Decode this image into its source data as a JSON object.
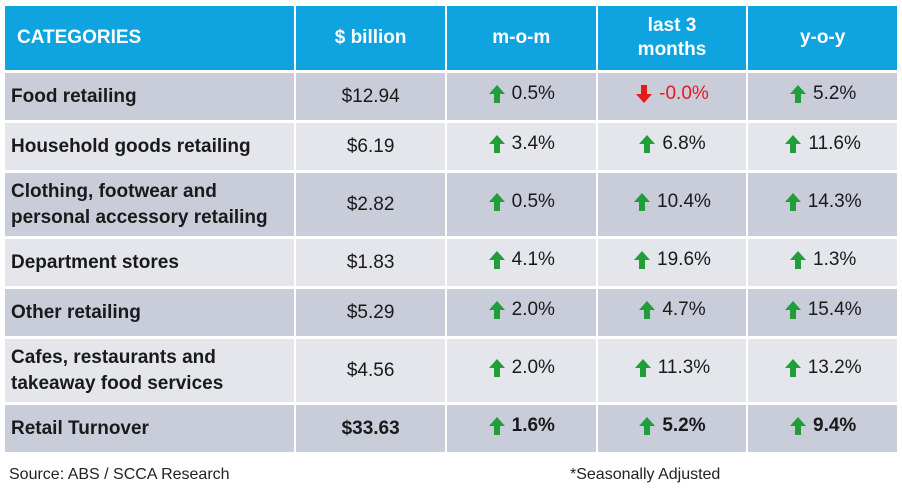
{
  "columns": [
    "CATEGORIES",
    "$ billion",
    "m-o-m",
    "last 3\nmonths",
    "y-o-y"
  ],
  "columns_display": {
    "categories": "CATEGORIES",
    "billion": "$ billion",
    "mom": "m-o-m",
    "last3_line1": "last 3",
    "last3_line2": "months",
    "yoy": "y-o-y"
  },
  "rows": [
    {
      "category_lines": [
        "Food retailing"
      ],
      "billion": "$12.94",
      "mom": {
        "value": "0.5%",
        "dir": "up"
      },
      "last3": {
        "value": "-0.0%",
        "dir": "down"
      },
      "yoy": {
        "value": "5.2%",
        "dir": "up"
      }
    },
    {
      "category_lines": [
        "Household goods retailing"
      ],
      "billion": "$6.19",
      "mom": {
        "value": "3.4%",
        "dir": "up"
      },
      "last3": {
        "value": "6.8%",
        "dir": "up"
      },
      "yoy": {
        "value": "11.6%",
        "dir": "up"
      }
    },
    {
      "category_lines": [
        "Clothing, footwear and",
        "personal accessory retailing"
      ],
      "billion": "$2.82",
      "mom": {
        "value": "0.5%",
        "dir": "up"
      },
      "last3": {
        "value": "10.4%",
        "dir": "up"
      },
      "yoy": {
        "value": "14.3%",
        "dir": "up"
      }
    },
    {
      "category_lines": [
        "Department stores"
      ],
      "billion": "$1.83",
      "mom": {
        "value": "4.1%",
        "dir": "up"
      },
      "last3": {
        "value": "19.6%",
        "dir": "up"
      },
      "yoy": {
        "value": "1.3%",
        "dir": "up"
      }
    },
    {
      "category_lines": [
        "Other retailing"
      ],
      "billion": "$5.29",
      "mom": {
        "value": "2.0%",
        "dir": "up"
      },
      "last3": {
        "value": "4.7%",
        "dir": "up"
      },
      "yoy": {
        "value": "15.4%",
        "dir": "up"
      }
    },
    {
      "category_lines": [
        "Cafes, restaurants and",
        "takeaway food services"
      ],
      "billion": "$4.56",
      "mom": {
        "value": "2.0%",
        "dir": "up"
      },
      "last3": {
        "value": "11.3%",
        "dir": "up"
      },
      "yoy": {
        "value": "13.2%",
        "dir": "up"
      }
    },
    {
      "category_lines": [
        "Retail Turnover"
      ],
      "billion": "$33.63",
      "total": true,
      "mom": {
        "value": "1.6%",
        "dir": "up"
      },
      "last3": {
        "value": "5.2%",
        "dir": "up"
      },
      "yoy": {
        "value": "9.4%",
        "dir": "up"
      }
    }
  ],
  "icons": {
    "up": "arrow-up-icon",
    "down": "arrow-down-icon"
  },
  "colors": {
    "header_bg": "#0fa3e0",
    "row_dark": "#c9ccd9",
    "row_light": "#e4e6ec",
    "up_arrow": "#1f9e3a",
    "down_arrow": "#e31b1b"
  },
  "footer": {
    "source": "Source: ABS / SCCA Research",
    "note": "*Seasonally Adjusted"
  }
}
